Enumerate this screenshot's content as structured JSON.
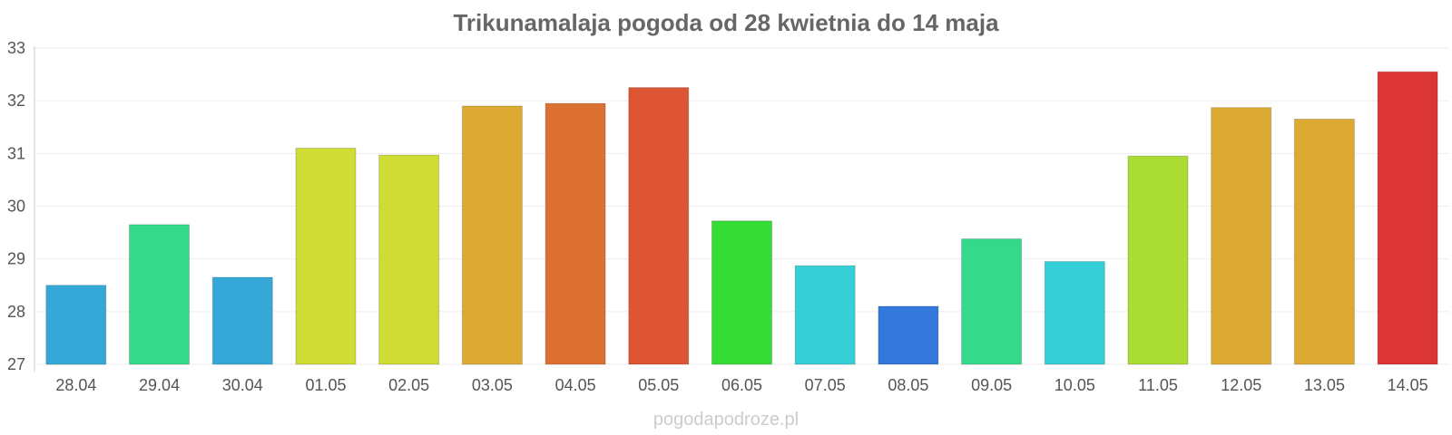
{
  "chart_data": {
    "type": "bar",
    "title": "Trikunamalaja pogoda od 28 kwietnia do 14 maja",
    "xlabel": "",
    "ylabel": "",
    "ylim": [
      27,
      33
    ],
    "y_ticks": [
      "27",
      "28",
      "29",
      "30",
      "31",
      "32",
      "33"
    ],
    "grid": true,
    "categories": [
      "28.04",
      "29.04",
      "30.04",
      "01.05",
      "02.05",
      "03.05",
      "04.05",
      "05.05",
      "06.05",
      "07.05",
      "08.05",
      "09.05",
      "10.05",
      "11.05",
      "12.05",
      "13.05",
      "14.05"
    ],
    "values": [
      28.5,
      29.65,
      28.65,
      31.1,
      30.97,
      31.9,
      31.95,
      32.25,
      29.72,
      28.87,
      28.1,
      29.38,
      28.95,
      30.95,
      31.87,
      31.65,
      32.55
    ],
    "colors": [
      "#35a8d8",
      "#35d98b",
      "#35a8d8",
      "#cfdc33",
      "#cfdc33",
      "#dcaa33",
      "#dd7033",
      "#dd5533",
      "#35dc35",
      "#35cfd8",
      "#3578dc",
      "#35d98b",
      "#35cfd8",
      "#aadc33",
      "#dcaa33",
      "#dcaa33",
      "#dc3535"
    ]
  },
  "watermark": "pogodapodroze.pl"
}
